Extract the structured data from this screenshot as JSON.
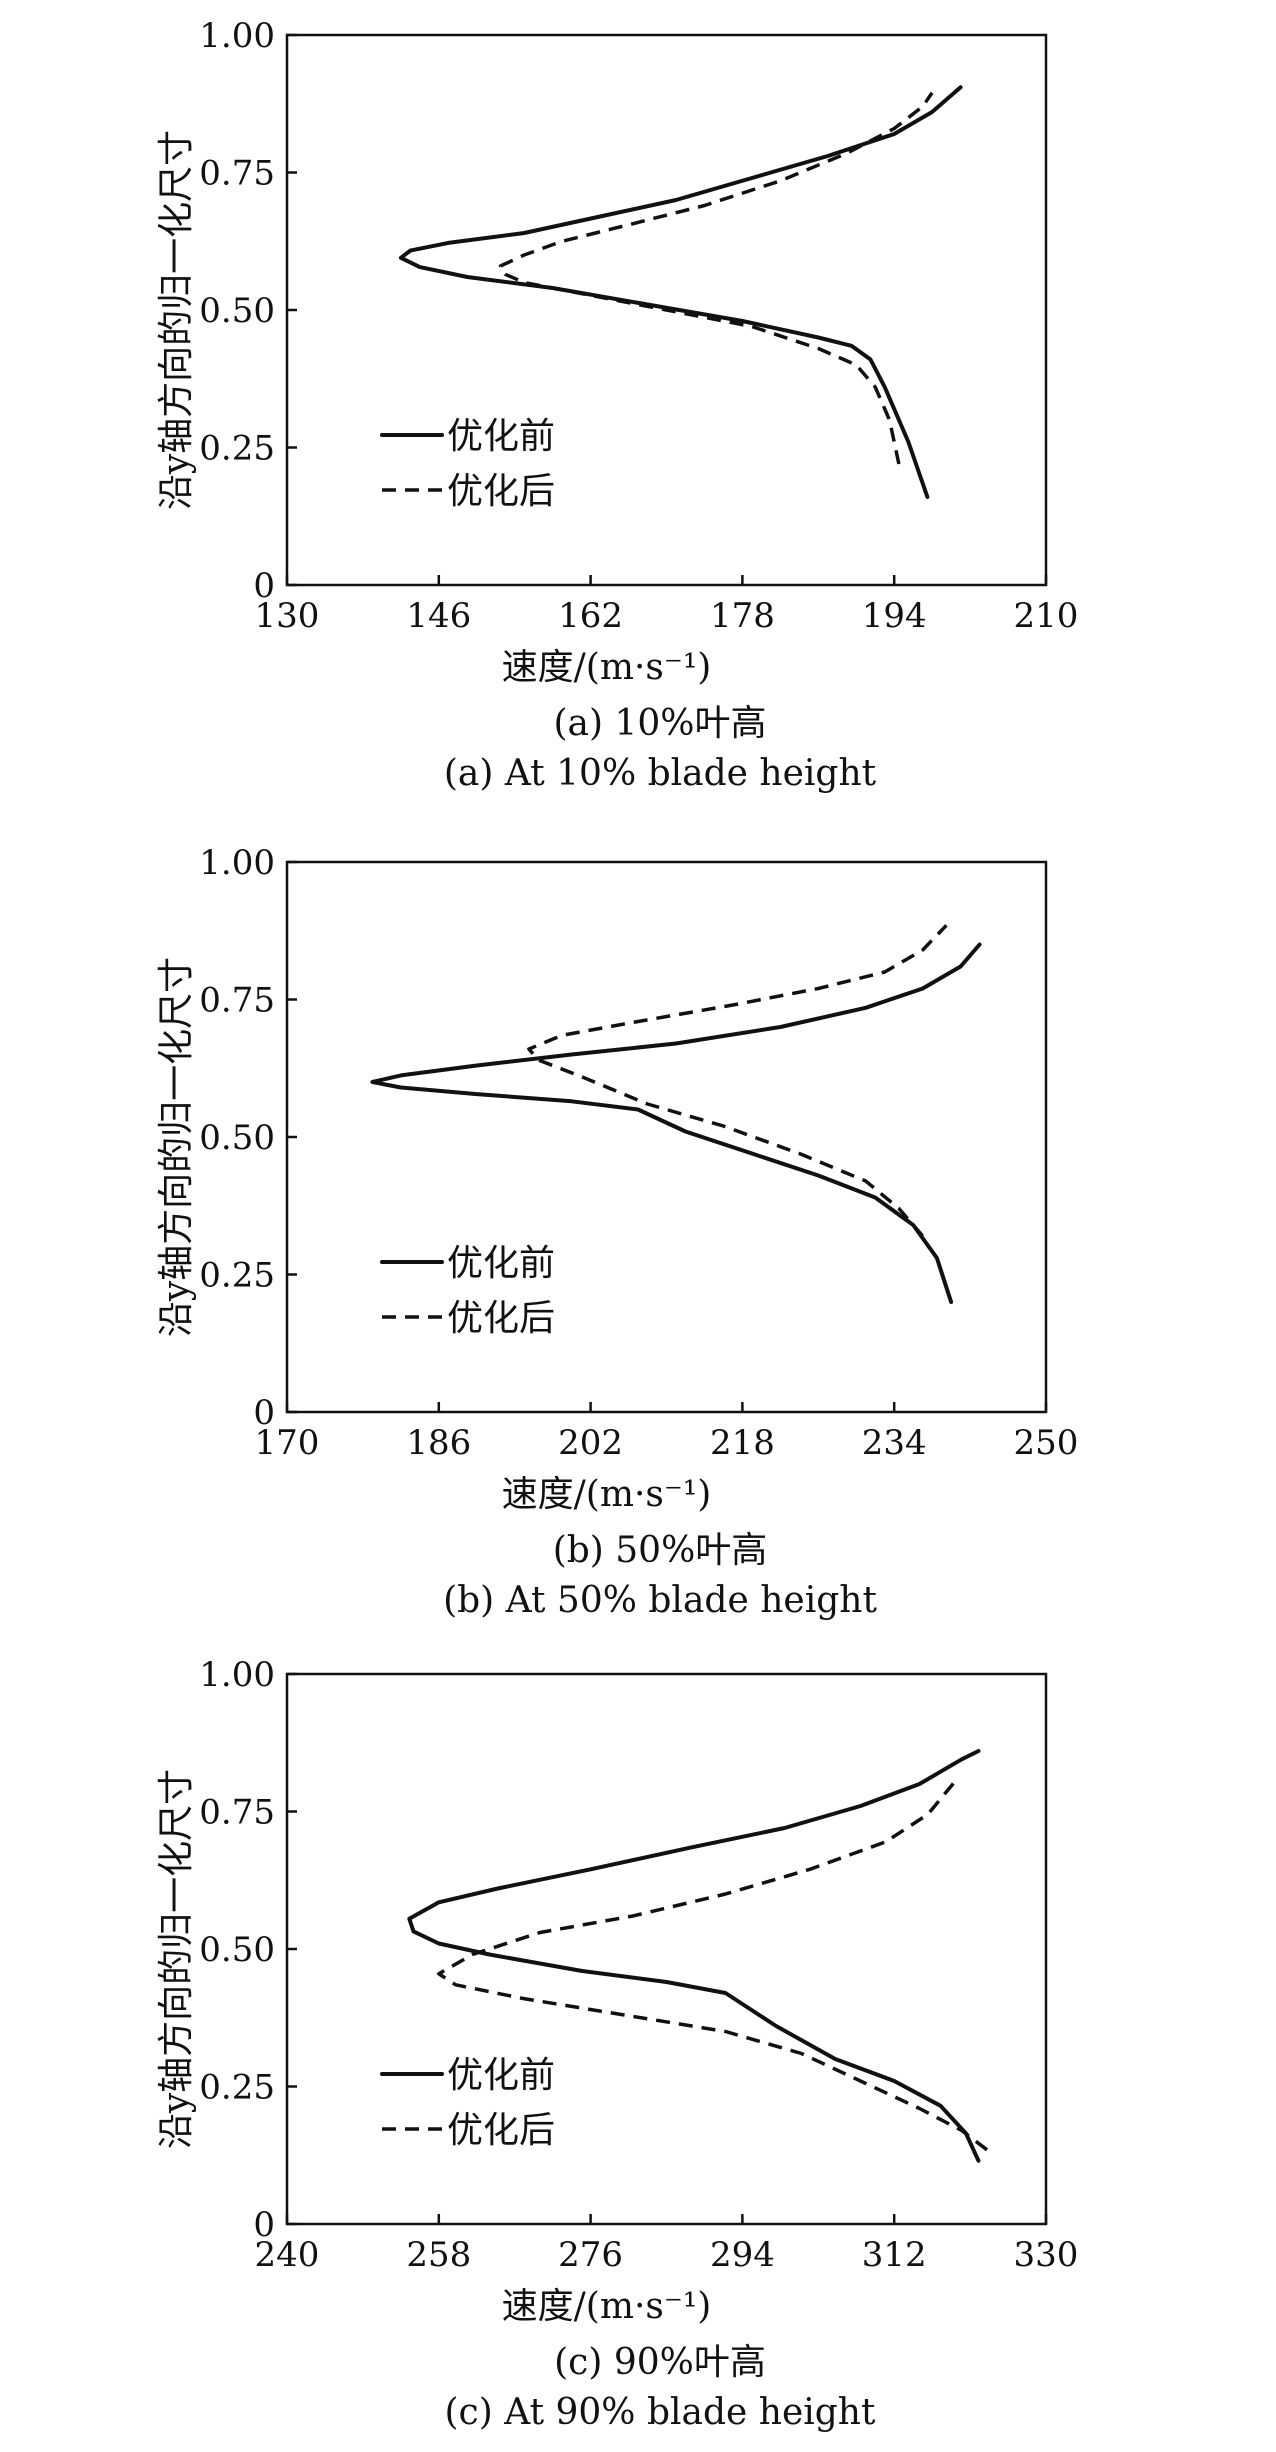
{
  "chart_data": [
    {
      "type": "line",
      "caption_cn": "(a) 10%叶高",
      "caption_en": "(a) At 10% blade height",
      "xlabel": "速度/(m·s⁻¹)",
      "ylabel": "沿y轴方向的归一化尺寸",
      "xlim": [
        130,
        210
      ],
      "ylim": [
        0,
        1
      ],
      "xticks": [
        "130",
        "146",
        "162",
        "178",
        "194",
        "210"
      ],
      "yticks": [
        "0",
        "0.25",
        "0.50",
        "0.75",
        "1.00"
      ],
      "legend_position": "lower-left",
      "series": [
        {
          "name": "优化前",
          "style": "solid",
          "points": [
            [
              197.5,
              0.16
            ],
            [
              195.5,
              0.26
            ],
            [
              193,
              0.36
            ],
            [
              191.5,
              0.41
            ],
            [
              189.5,
              0.435
            ],
            [
              186,
              0.45
            ],
            [
              178,
              0.48
            ],
            [
              168,
              0.51
            ],
            [
              158,
              0.54
            ],
            [
              149,
              0.56
            ],
            [
              144,
              0.578
            ],
            [
              142,
              0.595
            ],
            [
              143,
              0.608
            ],
            [
              147,
              0.622
            ],
            [
              155,
              0.64
            ],
            [
              163,
              0.67
            ],
            [
              171,
              0.7
            ],
            [
              179,
              0.74
            ],
            [
              187,
              0.78
            ],
            [
              194,
              0.82
            ],
            [
              198,
              0.86
            ],
            [
              201,
              0.905
            ]
          ]
        },
        {
          "name": "优化后",
          "style": "dashed",
          "points": [
            [
              194.5,
              0.22
            ],
            [
              193.5,
              0.3
            ],
            [
              192,
              0.36
            ],
            [
              190,
              0.4
            ],
            [
              186,
              0.43
            ],
            [
              179,
              0.47
            ],
            [
              170,
              0.5
            ],
            [
              161,
              0.53
            ],
            [
              155,
              0.55
            ],
            [
              153,
              0.565
            ],
            [
              152.5,
              0.58
            ],
            [
              155,
              0.6
            ],
            [
              159,
              0.625
            ],
            [
              166,
              0.655
            ],
            [
              174,
              0.69
            ],
            [
              182,
              0.735
            ],
            [
              189,
              0.785
            ],
            [
              194,
              0.83
            ],
            [
              197,
              0.87
            ],
            [
              198,
              0.895
            ]
          ]
        }
      ]
    },
    {
      "type": "line",
      "caption_cn": "(b) 50%叶高",
      "caption_en": "(b) At 50% blade height",
      "xlabel": "速度/(m·s⁻¹)",
      "ylabel": "沿y轴方向的归一化尺寸",
      "xlim": [
        170,
        250
      ],
      "ylim": [
        0,
        1
      ],
      "xticks": [
        "170",
        "186",
        "202",
        "218",
        "234",
        "250"
      ],
      "yticks": [
        "0",
        "0.25",
        "0.50",
        "0.75",
        "1.00"
      ],
      "legend_position": "lower-left",
      "series": [
        {
          "name": "优化前",
          "style": "solid",
          "points": [
            [
              240,
              0.2
            ],
            [
              238.5,
              0.28
            ],
            [
              236,
              0.34
            ],
            [
              232,
              0.39
            ],
            [
              226,
              0.43
            ],
            [
              219,
              0.47
            ],
            [
              212,
              0.51
            ],
            [
              207,
              0.55
            ],
            [
              200,
              0.565
            ],
            [
              190,
              0.578
            ],
            [
              182,
              0.59
            ],
            [
              179,
              0.6
            ],
            [
              182,
              0.612
            ],
            [
              190,
              0.63
            ],
            [
              200,
              0.65
            ],
            [
              211,
              0.67
            ],
            [
              222,
              0.7
            ],
            [
              231,
              0.735
            ],
            [
              237,
              0.77
            ],
            [
              241,
              0.81
            ],
            [
              243,
              0.85
            ]
          ]
        },
        {
          "name": "优化后",
          "style": "dashed",
          "points": [
            [
              237,
              0.32
            ],
            [
              234.5,
              0.37
            ],
            [
              231,
              0.42
            ],
            [
              224,
              0.47
            ],
            [
              216,
              0.52
            ],
            [
              208,
              0.56
            ],
            [
              201,
              0.61
            ],
            [
              196.5,
              0.64
            ],
            [
              195.5,
              0.66
            ],
            [
              199,
              0.685
            ],
            [
              207,
              0.71
            ],
            [
              217,
              0.74
            ],
            [
              226,
              0.77
            ],
            [
              233,
              0.8
            ],
            [
              237,
              0.84
            ],
            [
              239.5,
              0.885
            ]
          ]
        }
      ]
    },
    {
      "type": "line",
      "caption_cn": "(c) 90%叶高",
      "caption_en": "(c) At 90% blade height",
      "xlabel": "速度/(m·s⁻¹)",
      "ylabel": "沿y轴方向的归一化尺寸",
      "xlim": [
        240,
        330
      ],
      "ylim": [
        0,
        1
      ],
      "xticks": [
        "240",
        "258",
        "276",
        "294",
        "312",
        "330"
      ],
      "yticks": [
        "0",
        "0.25",
        "0.50",
        "0.75",
        "1.00"
      ],
      "legend_position": "lower-left",
      "series": [
        {
          "name": "优化前",
          "style": "solid",
          "points": [
            [
              322,
              0.115
            ],
            [
              320.5,
              0.165
            ],
            [
              317.5,
              0.215
            ],
            [
              312,
              0.26
            ],
            [
              305,
              0.3
            ],
            [
              298,
              0.36
            ],
            [
              292,
              0.42
            ],
            [
              285,
              0.44
            ],
            [
              275,
              0.46
            ],
            [
              264,
              0.49
            ],
            [
              258,
              0.51
            ],
            [
              255,
              0.532
            ],
            [
              254.5,
              0.555
            ],
            [
              258,
              0.585
            ],
            [
              265,
              0.61
            ],
            [
              276,
              0.645
            ],
            [
              288,
              0.685
            ],
            [
              299,
              0.72
            ],
            [
              308,
              0.76
            ],
            [
              315,
              0.8
            ],
            [
              320,
              0.845
            ],
            [
              322,
              0.86
            ]
          ]
        },
        {
          "name": "优化后",
          "style": "dashed",
          "points": [
            [
              323,
              0.135
            ],
            [
              320,
              0.17
            ],
            [
              315,
              0.21
            ],
            [
              308,
              0.26
            ],
            [
              301,
              0.31
            ],
            [
              292,
              0.35
            ],
            [
              280,
              0.38
            ],
            [
              268,
              0.41
            ],
            [
              260,
              0.435
            ],
            [
              258,
              0.455
            ],
            [
              262,
              0.49
            ],
            [
              270,
              0.53
            ],
            [
              281,
              0.56
            ],
            [
              292,
              0.6
            ],
            [
              302,
              0.645
            ],
            [
              311,
              0.695
            ],
            [
              316,
              0.745
            ],
            [
              319.5,
              0.81
            ]
          ]
        }
      ]
    }
  ]
}
